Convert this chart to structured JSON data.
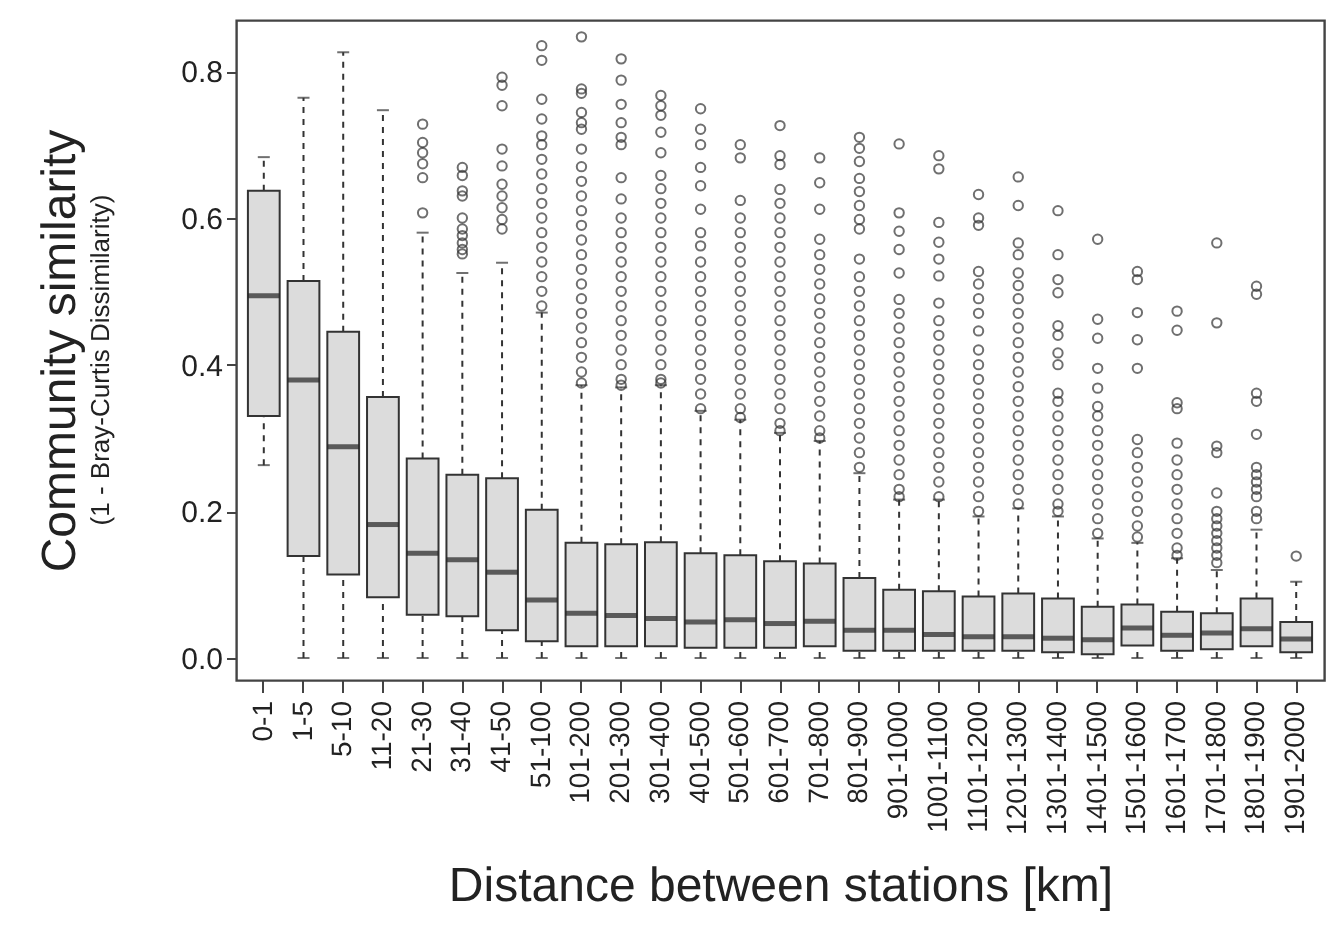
{
  "chart_data": {
    "type": "box",
    "xlabel": "Distance between stations [km]",
    "ylabel": "Community similarity",
    "annotations": [
      "(1 - Bray-Curtis Dissimilarity)"
    ],
    "categories": [
      "0-1",
      "1-5",
      "5-10",
      "11-20",
      "21-30",
      "31-40",
      "41-50",
      "51-100",
      "101-200",
      "201-300",
      "301-400",
      "401-500",
      "501-600",
      "601-700",
      "701-800",
      "801-900",
      "901-1000",
      "1001-1100",
      "1101-1200",
      "1201-1300",
      "1301-1400",
      "1401-1500",
      "1501-1600",
      "1601-1700",
      "1701-1800",
      "1801-1900",
      "1901-2000"
    ],
    "color": "#dcdcdc",
    "ylim": [
      -0.03,
      0.87
    ],
    "yticks": [
      {
        "value": 0,
        "label": "0.0"
      },
      0.2,
      0.4,
      0.6,
      0.8
    ],
    "grid": false,
    "boxes": [
      {
        "low": 0.263,
        "q1": 0.33,
        "median": 0.494,
        "q3": 0.637,
        "high": 0.683
      },
      {
        "low": 0.0,
        "q1": 0.139,
        "median": 0.379,
        "q3": 0.514,
        "high": 0.764
      },
      {
        "low": 0.0,
        "q1": 0.114,
        "median": 0.288,
        "q3": 0.445,
        "high": 0.826
      },
      {
        "low": 0.0,
        "q1": 0.083,
        "median": 0.182,
        "q3": 0.356,
        "high": 0.747
      },
      {
        "low": 0.0,
        "q1": 0.059,
        "median": 0.143,
        "q3": 0.272,
        "high": 0.58,
        "outliers": [
          0.728,
          0.703,
          0.689,
          0.674,
          0.655,
          0.607
        ]
      },
      {
        "low": 0.0,
        "q1": 0.057,
        "median": 0.134,
        "q3": 0.25,
        "high": 0.525,
        "outliers": [
          0.669,
          0.658,
          0.637,
          0.63,
          0.6,
          0.585,
          0.576,
          0.566,
          0.557,
          0.551
        ]
      },
      {
        "low": 0.0,
        "q1": 0.038,
        "median": 0.117,
        "q3": 0.245,
        "high": 0.539,
        "outliers": [
          0.792,
          0.781,
          0.753,
          0.694,
          0.671,
          0.646,
          0.63,
          0.614,
          0.598,
          0.585
        ]
      },
      {
        "low": 0.0,
        "q1": 0.023,
        "median": 0.079,
        "q3": 0.202,
        "high": 0.471,
        "outliers": [
          0.835,
          0.815,
          0.762,
          0.735,
          0.712,
          0.7,
          0.68,
          0.66,
          0.64,
          0.62,
          0.6,
          0.58,
          0.56,
          0.54,
          0.52,
          0.5,
          0.48
        ]
      },
      {
        "low": 0.0,
        "q1": 0.016,
        "median": 0.061,
        "q3": 0.157,
        "high": 0.372,
        "outliers": [
          0.847,
          0.776,
          0.77,
          0.744,
          0.73,
          0.721,
          0.694,
          0.67,
          0.65,
          0.63,
          0.61,
          0.59,
          0.57,
          0.55,
          0.53,
          0.51,
          0.49,
          0.47,
          0.45,
          0.43,
          0.41,
          0.39,
          0.375
        ]
      },
      {
        "low": 0.0,
        "q1": 0.016,
        "median": 0.058,
        "q3": 0.155,
        "high": 0.369,
        "outliers": [
          0.817,
          0.788,
          0.755,
          0.73,
          0.71,
          0.7,
          0.655,
          0.626,
          0.6,
          0.58,
          0.56,
          0.54,
          0.52,
          0.5,
          0.48,
          0.46,
          0.44,
          0.42,
          0.4,
          0.38,
          0.372
        ]
      },
      {
        "low": 0.0,
        "q1": 0.016,
        "median": 0.054,
        "q3": 0.158,
        "high": 0.372,
        "outliers": [
          0.767,
          0.753,
          0.74,
          0.717,
          0.689,
          0.658,
          0.64,
          0.62,
          0.6,
          0.58,
          0.56,
          0.54,
          0.52,
          0.5,
          0.48,
          0.46,
          0.44,
          0.42,
          0.4,
          0.38,
          0.375
        ]
      },
      {
        "low": 0.0,
        "q1": 0.014,
        "median": 0.049,
        "q3": 0.143,
        "high": 0.337,
        "outliers": [
          0.749,
          0.721,
          0.7,
          0.669,
          0.644,
          0.612,
          0.58,
          0.562,
          0.54,
          0.52,
          0.5,
          0.48,
          0.46,
          0.44,
          0.42,
          0.4,
          0.38,
          0.36,
          0.34
        ]
      },
      {
        "low": 0.0,
        "q1": 0.014,
        "median": 0.052,
        "q3": 0.14,
        "high": 0.325,
        "outliers": [
          0.7,
          0.682,
          0.624,
          0.6,
          0.58,
          0.56,
          0.54,
          0.52,
          0.5,
          0.48,
          0.46,
          0.44,
          0.42,
          0.4,
          0.38,
          0.36,
          0.34,
          0.328
        ]
      },
      {
        "low": 0.0,
        "q1": 0.014,
        "median": 0.047,
        "q3": 0.132,
        "high": 0.307,
        "outliers": [
          0.726,
          0.685,
          0.673,
          0.639,
          0.62,
          0.6,
          0.58,
          0.56,
          0.54,
          0.52,
          0.5,
          0.48,
          0.46,
          0.44,
          0.42,
          0.4,
          0.38,
          0.36,
          0.34,
          0.32,
          0.31
        ]
      },
      {
        "low": 0.0,
        "q1": 0.016,
        "median": 0.05,
        "q3": 0.129,
        "high": 0.296,
        "outliers": [
          0.682,
          0.648,
          0.612,
          0.571,
          0.55,
          0.53,
          0.51,
          0.49,
          0.47,
          0.45,
          0.43,
          0.41,
          0.39,
          0.37,
          0.35,
          0.33,
          0.31,
          0.3
        ]
      },
      {
        "low": 0.0,
        "q1": 0.01,
        "median": 0.038,
        "q3": 0.109,
        "high": 0.252,
        "outliers": [
          0.71,
          0.695,
          0.677,
          0.654,
          0.636,
          0.617,
          0.598,
          0.585,
          0.544,
          0.52,
          0.5,
          0.48,
          0.46,
          0.44,
          0.42,
          0.4,
          0.38,
          0.36,
          0.34,
          0.32,
          0.3,
          0.28,
          0.26
        ]
      },
      {
        "low": 0.0,
        "q1": 0.01,
        "median": 0.038,
        "q3": 0.093,
        "high": 0.216,
        "outliers": [
          0.701,
          0.607,
          0.582,
          0.557,
          0.525,
          0.489,
          0.47,
          0.45,
          0.43,
          0.41,
          0.39,
          0.37,
          0.35,
          0.33,
          0.31,
          0.29,
          0.27,
          0.25,
          0.23,
          0.22
        ]
      },
      {
        "low": 0.0,
        "q1": 0.01,
        "median": 0.032,
        "q3": 0.091,
        "high": 0.216,
        "outliers": [
          0.685,
          0.667,
          0.594,
          0.567,
          0.544,
          0.521,
          0.484,
          0.46,
          0.44,
          0.42,
          0.4,
          0.38,
          0.36,
          0.34,
          0.32,
          0.3,
          0.28,
          0.26,
          0.24,
          0.22
        ]
      },
      {
        "low": 0.0,
        "q1": 0.01,
        "median": 0.029,
        "q3": 0.084,
        "high": 0.193,
        "outliers": [
          0.632,
          0.6,
          0.59,
          0.527,
          0.51,
          0.49,
          0.47,
          0.446,
          0.42,
          0.4,
          0.38,
          0.36,
          0.34,
          0.32,
          0.3,
          0.28,
          0.26,
          0.24,
          0.22,
          0.2
        ]
      },
      {
        "low": 0.0,
        "q1": 0.01,
        "median": 0.029,
        "q3": 0.088,
        "high": 0.204,
        "outliers": [
          0.656,
          0.617,
          0.566,
          0.55,
          0.525,
          0.508,
          0.49,
          0.47,
          0.45,
          0.43,
          0.41,
          0.39,
          0.37,
          0.35,
          0.33,
          0.31,
          0.29,
          0.27,
          0.25,
          0.23,
          0.21
        ]
      },
      {
        "low": 0.0,
        "q1": 0.008,
        "median": 0.027,
        "q3": 0.081,
        "high": 0.193,
        "outliers": [
          0.61,
          0.55,
          0.516,
          0.498,
          0.453,
          0.44,
          0.416,
          0.4,
          0.361,
          0.35,
          0.33,
          0.31,
          0.29,
          0.27,
          0.25,
          0.23,
          0.21,
          0.2
        ]
      },
      {
        "low": 0.0,
        "q1": 0.005,
        "median": 0.025,
        "q3": 0.07,
        "high": 0.163,
        "outliers": [
          0.571,
          0.462,
          0.436,
          0.395,
          0.368,
          0.343,
          0.33,
          0.31,
          0.29,
          0.27,
          0.25,
          0.23,
          0.21,
          0.19,
          0.17
        ]
      },
      {
        "low": 0.0,
        "q1": 0.017,
        "median": 0.041,
        "q3": 0.073,
        "high": 0.157,
        "outliers": [
          0.527,
          0.516,
          0.471,
          0.434,
          0.395,
          0.298,
          0.28,
          0.26,
          0.24,
          0.22,
          0.2,
          0.18,
          0.165
        ]
      },
      {
        "low": 0.0,
        "q1": 0.01,
        "median": 0.031,
        "q3": 0.063,
        "high": 0.136,
        "outliers": [
          0.473,
          0.447,
          0.348,
          0.34,
          0.293,
          0.27,
          0.25,
          0.23,
          0.21,
          0.19,
          0.17,
          0.15,
          0.14
        ]
      },
      {
        "low": 0.0,
        "q1": 0.012,
        "median": 0.034,
        "q3": 0.061,
        "high": 0.12,
        "outliers": [
          0.566,
          0.457,
          0.289,
          0.28,
          0.225,
          0.2,
          0.19,
          0.18,
          0.17,
          0.16,
          0.15,
          0.14,
          0.13
        ]
      },
      {
        "low": 0.0,
        "q1": 0.016,
        "median": 0.04,
        "q3": 0.081,
        "high": 0.175,
        "outliers": [
          0.507,
          0.496,
          0.361,
          0.35,
          0.305,
          0.26,
          0.25,
          0.24,
          0.23,
          0.22,
          0.2,
          0.19
        ]
      },
      {
        "low": 0.0,
        "q1": 0.008,
        "median": 0.026,
        "q3": 0.049,
        "high": 0.104,
        "outliers": [
          0.139
        ]
      }
    ]
  }
}
